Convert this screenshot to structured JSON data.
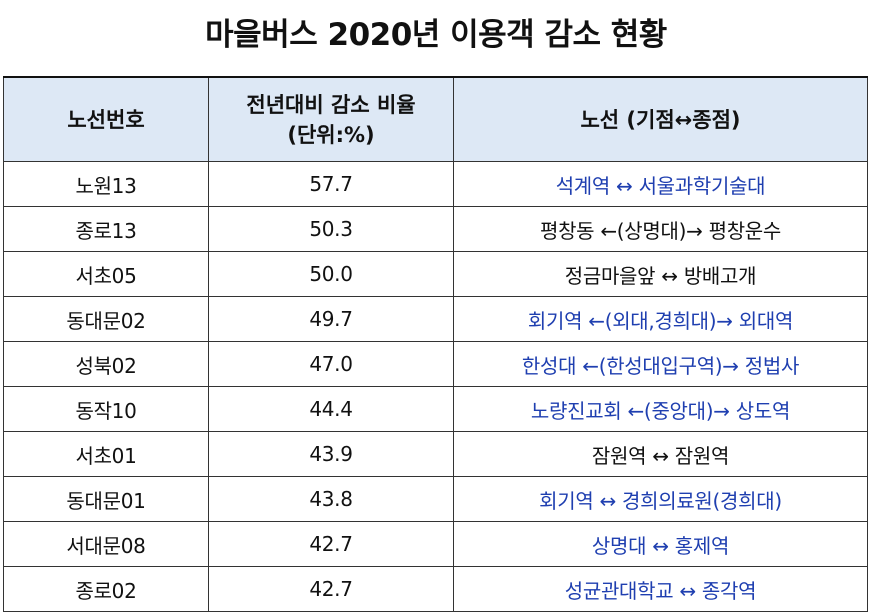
{
  "title": "마을버스 2020년 이용객 감소 현황",
  "table": {
    "headers": {
      "route": "노선번호",
      "rate_line1": "전년대비 감소 비율",
      "rate_line2": "(단위:%)",
      "path": "노선 (기점↔종점)"
    },
    "rows": [
      {
        "route": "노원13",
        "rate": "57.7",
        "path": "석계역 ↔ 서울과학기술대",
        "link": true
      },
      {
        "route": "종로13",
        "rate": "50.3",
        "path": "평창동 ←(상명대)→ 평창운수",
        "link": false
      },
      {
        "route": "서초05",
        "rate": "50.0",
        "path": "정금마을앞 ↔ 방배고개",
        "link": false
      },
      {
        "route": "동대문02",
        "rate": "49.7",
        "path": "회기역 ←(외대,경희대)→ 외대역",
        "link": true
      },
      {
        "route": "성북02",
        "rate": "47.0",
        "path": "한성대 ←(한성대입구역)→ 정법사",
        "link": true
      },
      {
        "route": "동작10",
        "rate": "44.4",
        "path": "노량진교회 ←(중앙대)→ 상도역",
        "link": true
      },
      {
        "route": "서초01",
        "rate": "43.9",
        "path": "잠원역 ↔ 잠원역",
        "link": false
      },
      {
        "route": "동대문01",
        "rate": "43.8",
        "path": "회기역 ↔ 경희의료원(경희대)",
        "link": true
      },
      {
        "route": "서대문08",
        "rate": "42.7",
        "path": "상명대 ↔ 홍제역",
        "link": true
      },
      {
        "route": "종로02",
        "rate": "42.7",
        "path": "성균관대학교 ↔ 종각역",
        "link": true
      }
    ]
  },
  "colors": {
    "header_bg": "#dde8f5",
    "link_text": "#1f3fb0",
    "border": "#333333"
  }
}
